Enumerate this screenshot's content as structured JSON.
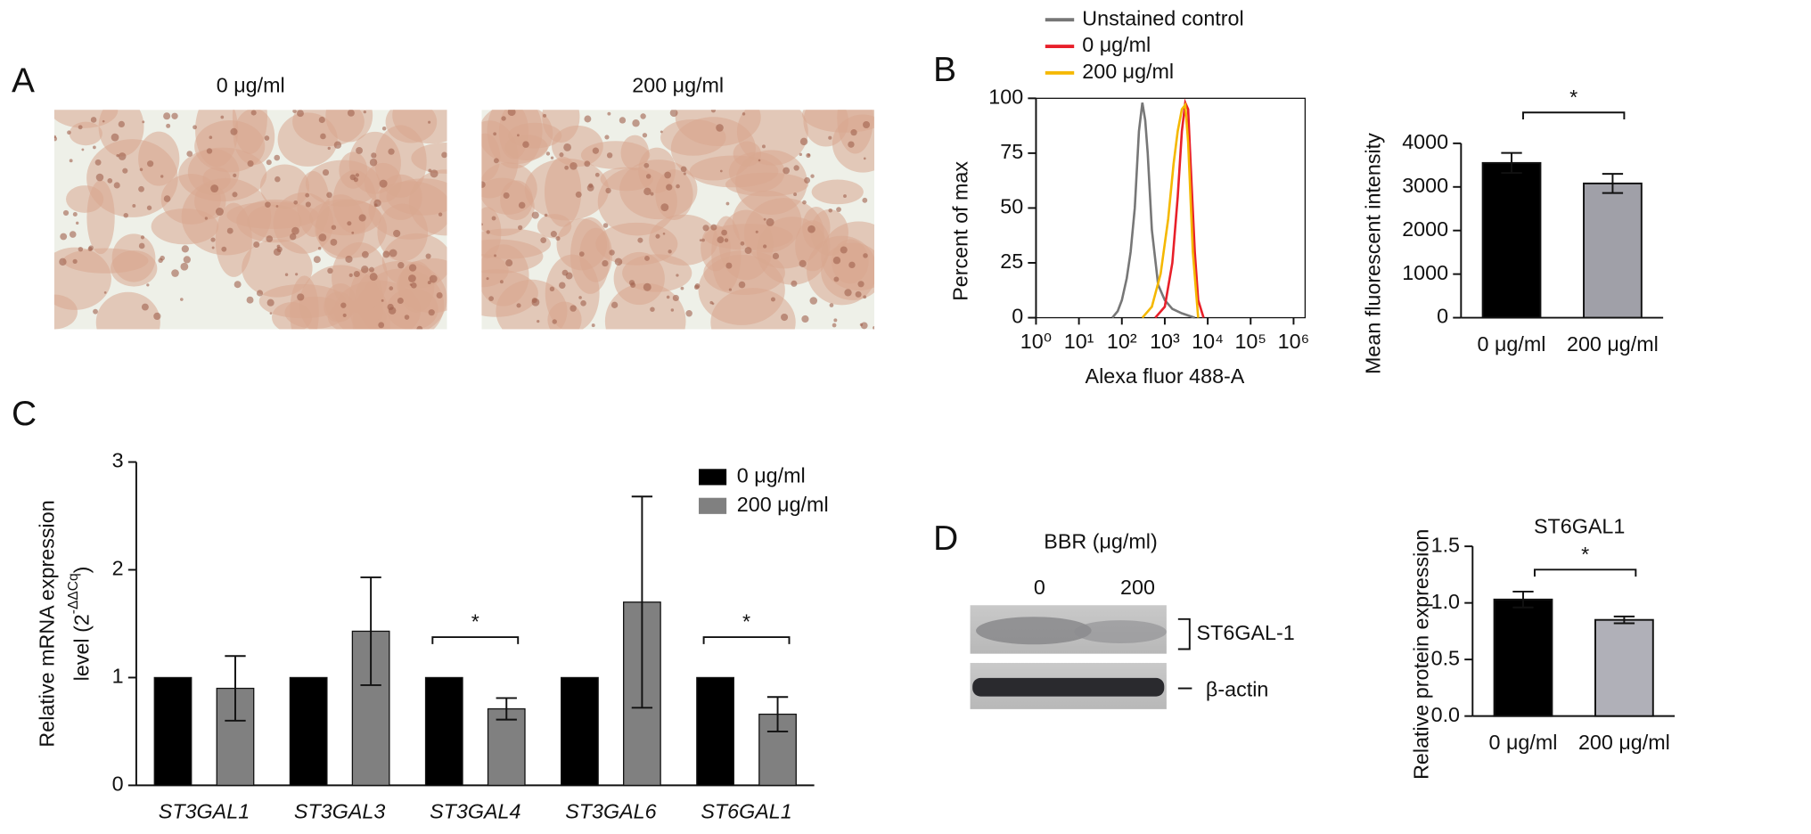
{
  "panel_labels": [
    "A",
    "B",
    "C",
    "D"
  ],
  "micrographs": {
    "labels": [
      "0 μg/ml",
      "200 μg/ml"
    ]
  },
  "blot": {
    "treatment_label": "BBR (μg/ml)",
    "lanes": [
      "0",
      "200"
    ],
    "bands": [
      "ST6GAL-1",
      "β-actin"
    ]
  },
  "chart_data": [
    {
      "type": "line",
      "x_label": "Alexa fluor 488-A",
      "y_label": "Percent of max",
      "xscale": "log",
      "xlim": [
        1,
        1000000
      ],
      "xticks": [
        {
          "value": 1,
          "label": "10⁰"
        },
        {
          "value": 10,
          "label": "10¹"
        },
        {
          "value": 100,
          "label": "10²"
        },
        {
          "value": 1000,
          "label": "10³"
        },
        {
          "value": 10000,
          "label": "10⁴"
        },
        {
          "value": 100000,
          "label": "10⁵"
        },
        {
          "value": 1000000,
          "label": "10⁶"
        }
      ],
      "ylim": [
        0,
        100
      ],
      "yticks": [
        0,
        25,
        50,
        75,
        100
      ],
      "series": [
        {
          "name": "Unstained control",
          "color": "#777777",
          "x": [
            60,
            80,
            100,
            130,
            160,
            200,
            250,
            300,
            350,
            400,
            500,
            700,
            1000,
            1500,
            2500,
            5000
          ],
          "values": [
            0,
            3,
            8,
            18,
            30,
            50,
            85,
            98,
            90,
            75,
            40,
            15,
            8,
            4,
            2,
            0
          ]
        },
        {
          "name": "0 μg/ml",
          "color": "#e8202a",
          "x": [
            600,
            1000,
            1500,
            2000,
            2500,
            3000,
            3500,
            4000,
            5000,
            6000,
            8000
          ],
          "values": [
            0,
            5,
            25,
            55,
            85,
            98,
            95,
            70,
            30,
            8,
            0
          ]
        },
        {
          "name": "200 μg/ml",
          "color": "#f5b800",
          "x": [
            300,
            500,
            800,
            1200,
            1600,
            2000,
            2500,
            3000,
            3500,
            4500,
            6000
          ],
          "values": [
            0,
            5,
            20,
            45,
            70,
            85,
            95,
            97,
            80,
            30,
            0
          ]
        }
      ]
    },
    {
      "type": "bar",
      "y_label": "Mean fluorescent intensity",
      "categories": [
        "0 μg/ml",
        "200 μg/ml"
      ],
      "values": [
        3550,
        3080
      ],
      "errors": [
        230,
        220
      ],
      "colors": [
        "#000000",
        "#a0a0a8"
      ],
      "ylim": [
        0,
        4000
      ],
      "yticks": [
        0,
        1000,
        2000,
        3000,
        4000
      ],
      "significance": "*"
    },
    {
      "type": "grouped_bar",
      "y_label": {
        "line1": "Relative mRNA expression",
        "line2": "level (2",
        "exponent": "-ΔΔCq",
        "close": ")"
      },
      "categories": [
        "ST3GAL1",
        "ST3GAL3",
        "ST3GAL4",
        "ST3GAL6",
        "ST6GAL1"
      ],
      "ylim": [
        0,
        3
      ],
      "yticks": [
        0,
        1,
        2,
        3
      ],
      "series": [
        {
          "name": "0 μg/ml",
          "color": "#000000",
          "values": [
            1,
            1,
            1,
            1,
            1
          ]
        },
        {
          "name": "200 μg/ml",
          "color": "#808080",
          "values": [
            0.9,
            1.43,
            0.71,
            1.7,
            0.66
          ],
          "errors": [
            0.3,
            0.5,
            0.1,
            0.98,
            0.16
          ]
        }
      ],
      "significance": [
        {
          "category": "ST3GAL4",
          "label": "*"
        },
        {
          "category": "ST6GAL1",
          "label": "*"
        }
      ]
    },
    {
      "type": "bar",
      "title": "ST6GAL1",
      "y_label": "Relative protein expression",
      "categories": [
        "0 μg/ml",
        "200 μg/ml"
      ],
      "values": [
        1.03,
        0.85
      ],
      "errors": [
        0.07,
        0.03
      ],
      "colors": [
        "#000000",
        "#b0b0b8"
      ],
      "ylim": [
        0,
        1.5
      ],
      "yticks": [
        {
          "value": 0,
          "label": "0.0"
        },
        0.5,
        {
          "value": 1,
          "label": "1.0"
        },
        1.5
      ],
      "significance": "*"
    }
  ]
}
